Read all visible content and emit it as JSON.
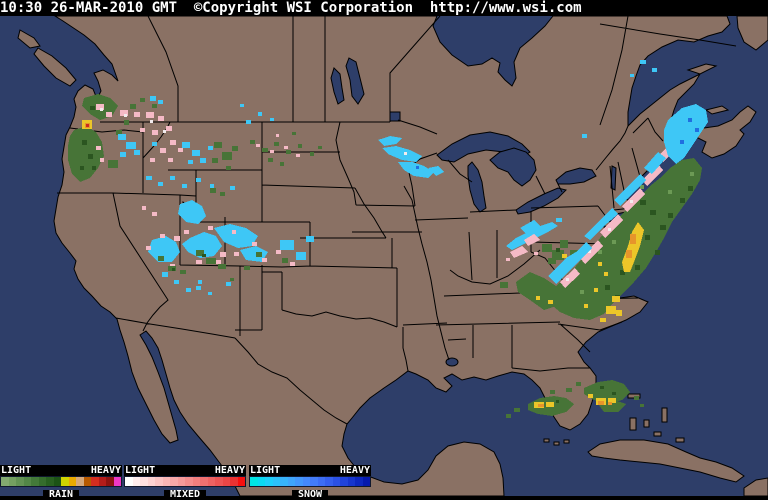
{
  "header": {
    "text": "10:30 26-MAR-2010 GMT  ©Copyright WSI Corporation  http://www.wsi.com"
  },
  "legend": {
    "light_label": "LIGHT",
    "heavy_label": "HEAVY",
    "scales": [
      {
        "label": "RAIN",
        "colors": [
          "#83aa70",
          "#74a061",
          "#639354",
          "#538747",
          "#437a39",
          "#356d2c",
          "#286020",
          "#1c5316",
          "#cfd400",
          "#e9a900",
          "#d6a87a",
          "#b85a00",
          "#d42d20",
          "#b51c1a",
          "#8e1311",
          "#ef38c5"
        ]
      },
      {
        "label": "MIXED",
        "colors": [
          "#ffffff",
          "#ffeeee",
          "#ffe0e0",
          "#fdd2d2",
          "#fbc4c4",
          "#f9b6b6",
          "#f7a8a8",
          "#f59a9a",
          "#f38c8c",
          "#f17e7e",
          "#ef7070",
          "#ed6262",
          "#eb5454",
          "#e94646",
          "#ea3232",
          "#f60f0f"
        ]
      },
      {
        "label": "SNOW",
        "colors": [
          "#00e5e5",
          "#0bd9f3",
          "#1dcffa",
          "#2bc1fa",
          "#37b3fa",
          "#3fa5fa",
          "#4397fa",
          "#4589fa",
          "#437bf8",
          "#3d6df3",
          "#355fed",
          "#2b51e5",
          "#2143da",
          "#1735cd",
          "#0d27bf",
          "#0519ae"
        ]
      }
    ]
  },
  "map": {
    "colors": {
      "titlebar_bg": "#000000",
      "titlebar_fg": "#ffffff",
      "ocean": "#2e3e69",
      "land": "#8a7164",
      "outline": "#000000",
      "rain": "#477437",
      "rain_dark": "#2b5520",
      "rain_light": "#6c9a55",
      "yellow": "#ecc629",
      "orange": "#e6952b",
      "red": "#cc2a1e",
      "snow": "#3ec7f6",
      "snow_dark": "#1f6fe0",
      "mixed": "#f5bac6",
      "mixed_light": "#f2ecee"
    }
  }
}
